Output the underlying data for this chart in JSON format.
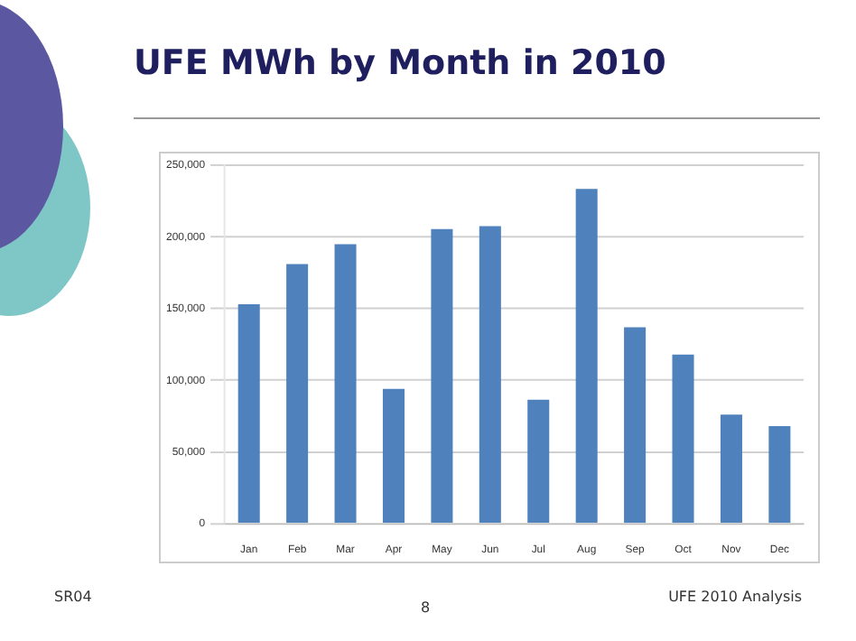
{
  "chart_data": {
    "type": "bar",
    "title": "UFE MWh by Month in 2010",
    "categories": [
      "Jan",
      "Feb",
      "Mar",
      "Apr",
      "May",
      "Jun",
      "Jul",
      "Aug",
      "Sep",
      "Oct",
      "Nov",
      "Dec"
    ],
    "values": [
      153000,
      181000,
      195000,
      94000,
      205500,
      207500,
      86500,
      233500,
      137000,
      118000,
      76000,
      68000
    ],
    "color": "#4f81bd",
    "ylim": [
      0,
      250000
    ],
    "yticks": [
      {
        "value": 0,
        "label": "0"
      },
      {
        "value": 50000,
        "label": "50,000"
      },
      {
        "value": 100000,
        "label": "100,000"
      },
      {
        "value": 150000,
        "label": "150,000"
      },
      {
        "value": 200000,
        "label": "200,000"
      },
      {
        "value": 250000,
        "label": "250,000"
      }
    ],
    "grid": "y",
    "annotations": [
      "SR04",
      "8",
      "UFE 2010 Analysis"
    ]
  }
}
